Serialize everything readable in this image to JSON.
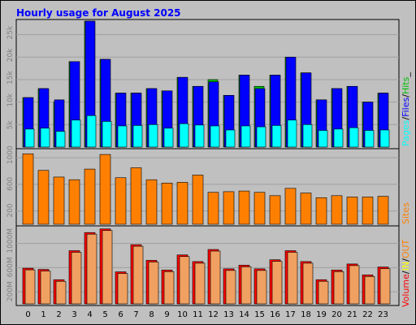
{
  "title": "Hourly usage for August 2025",
  "colors": {
    "background": "#c0c0c0",
    "title": "#0000ff",
    "hits": "#00c000",
    "files": "#0000ff",
    "pages": "#00ffff",
    "sites": "#ff8000",
    "kbytes": "#ff8000",
    "in": "#ffff00",
    "out": "#ff8000",
    "volume": "#ff0000"
  },
  "chart_data": [
    {
      "type": "bar",
      "panel": "hits-files-pages",
      "categories": [
        "0",
        "1",
        "2",
        "3",
        "4",
        "5",
        "6",
        "7",
        "8",
        "9",
        "10",
        "11",
        "12",
        "13",
        "14",
        "15",
        "16",
        "17",
        "18",
        "19",
        "20",
        "21",
        "22",
        "23"
      ],
      "series": [
        {
          "name": "Hits",
          "values": [
            1100,
            1300,
            1000,
            1900,
            2800,
            1950,
            1200,
            1200,
            1300,
            1250,
            1550,
            1350,
            1500,
            1150,
            1600,
            1350,
            1600,
            2000,
            1650,
            1050,
            1300,
            1350,
            1000,
            1200
          ]
        },
        {
          "name": "Files",
          "values": [
            1100,
            1300,
            1050,
            1900,
            2800,
            1950,
            1200,
            1200,
            1300,
            1250,
            1550,
            1350,
            1450,
            1150,
            1600,
            1300,
            1600,
            2000,
            1650,
            1050,
            1300,
            1350,
            1000,
            1200
          ]
        },
        {
          "name": "Pages",
          "values": [
            400,
            420,
            350,
            600,
            700,
            570,
            470,
            480,
            500,
            420,
            520,
            490,
            470,
            380,
            470,
            450,
            480,
            600,
            500,
            370,
            400,
            430,
            370,
            380
          ]
        }
      ],
      "y_ticks": [
        "5k",
        "10k",
        "15k",
        "20k",
        "25k"
      ],
      "ylim": [
        0,
        2800
      ],
      "legend": {
        "pages": "Pages",
        "files": "Files",
        "hits": "Hits",
        "sep": "/",
        "tail": "_"
      }
    },
    {
      "type": "bar",
      "panel": "sites",
      "categories": [
        "0",
        "1",
        "2",
        "3",
        "4",
        "5",
        "6",
        "7",
        "8",
        "9",
        "10",
        "11",
        "12",
        "13",
        "14",
        "15",
        "16",
        "17",
        "18",
        "19",
        "20",
        "21",
        "22",
        "23"
      ],
      "series": [
        {
          "name": "Sites",
          "values": [
            1060,
            810,
            710,
            670,
            830,
            1050,
            700,
            850,
            670,
            620,
            630,
            740,
            480,
            490,
            500,
            480,
            430,
            540,
            470,
            400,
            430,
            410,
            410,
            420
          ]
        }
      ],
      "y_ticks": [
        "200",
        "600",
        "1000"
      ],
      "ylim": [
        0,
        1100
      ],
      "legend": {
        "sites": "Sites"
      }
    },
    {
      "type": "bar",
      "panel": "volume",
      "categories": [
        "0",
        "1",
        "2",
        "3",
        "4",
        "5",
        "6",
        "7",
        "8",
        "9",
        "10",
        "11",
        "12",
        "13",
        "14",
        "15",
        "16",
        "17",
        "18",
        "19",
        "20",
        "21",
        "22",
        "23"
      ],
      "series": [
        {
          "name": "Volume",
          "values": [
            590,
            570,
            400,
            880,
            1180,
            1240,
            530,
            980,
            720,
            560,
            810,
            700,
            900,
            580,
            640,
            580,
            730,
            880,
            700,
            400,
            560,
            660,
            480,
            610
          ]
        }
      ],
      "y_ticks": [
        "200M",
        "600M",
        "1000M"
      ],
      "ylim": [
        0,
        1250
      ],
      "legend": {
        "volume": "Volume",
        "in": "IN",
        "out": "OUT",
        "sep": "/",
        "sep2": "/"
      }
    }
  ]
}
